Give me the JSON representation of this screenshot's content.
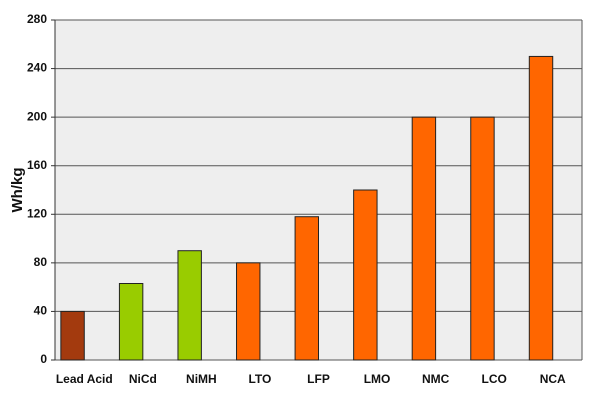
{
  "chart_data": {
    "type": "bar",
    "y_label": "Wh/kg",
    "categories": [
      "Lead Acid",
      "NiCd",
      "NiMH",
      "LTO",
      "LFP",
      "LMO",
      "NMC",
      "LCO",
      "NCA"
    ],
    "values": [
      40,
      63,
      90,
      80,
      118,
      140,
      200,
      200,
      250
    ],
    "colors": [
      "#a33a0e",
      "#99cc00",
      "#99cc00",
      "#ff6600",
      "#ff6600",
      "#ff6600",
      "#ff6600",
      "#ff6600",
      "#ff6600"
    ],
    "ylim": [
      0,
      280
    ],
    "yticks": [
      0,
      40,
      80,
      120,
      160,
      200,
      240,
      280
    ],
    "grid": true
  }
}
